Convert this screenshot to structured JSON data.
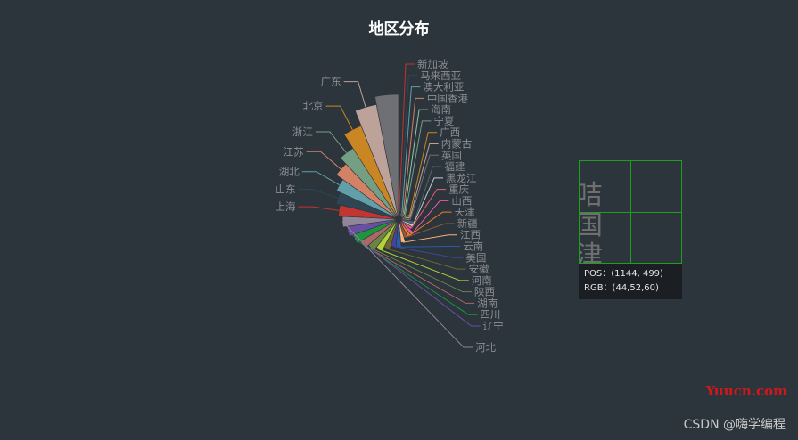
{
  "chart_data": {
    "type": "pie",
    "subtype": "rose",
    "title": "地区分布",
    "legend": "none",
    "slices": [
      {
        "label": "新加坡",
        "value": 1,
        "color": "#c23531"
      },
      {
        "label": "马来西亚",
        "value": 1,
        "color": "#2f4554"
      },
      {
        "label": "澳大利亚",
        "value": 1,
        "color": "#61a0a8"
      },
      {
        "label": "中国香港",
        "value": 1,
        "color": "#d48265"
      },
      {
        "label": "海南",
        "value": 1,
        "color": "#91c7ae"
      },
      {
        "label": "宁夏",
        "value": 1,
        "color": "#749f83"
      },
      {
        "label": "广西",
        "value": 2,
        "color": "#ca8622"
      },
      {
        "label": "内蒙古",
        "value": 2,
        "color": "#bda29a"
      },
      {
        "label": "英国",
        "value": 2,
        "color": "#6e7074"
      },
      {
        "label": "福建",
        "value": 3,
        "color": "#546570"
      },
      {
        "label": "黑龙江",
        "value": 3,
        "color": "#c4ccd3"
      },
      {
        "label": "重庆",
        "value": 3,
        "color": "#f05b72"
      },
      {
        "label": "山西",
        "value": 4,
        "color": "#ef5b9c"
      },
      {
        "label": "天津",
        "value": 4,
        "color": "#f47920"
      },
      {
        "label": "新疆",
        "value": 4,
        "color": "#905a3d"
      },
      {
        "label": "江西",
        "value": 5,
        "color": "#fab27b"
      },
      {
        "label": "云南",
        "value": 6,
        "color": "#2a5caa"
      },
      {
        "label": "美国",
        "value": 6,
        "color": "#444693"
      },
      {
        "label": "安徽",
        "value": 7,
        "color": "#726930"
      },
      {
        "label": "河南",
        "value": 8,
        "color": "#b2d235"
      },
      {
        "label": "陕西",
        "value": 9,
        "color": "#6d8346"
      },
      {
        "label": "湖南",
        "value": 10,
        "color": "#ac6767"
      },
      {
        "label": "四川",
        "value": 11,
        "color": "#1d953f"
      },
      {
        "label": "辽宁",
        "value": 12,
        "color": "#6950a1"
      },
      {
        "label": "河北",
        "value": 13,
        "color": "#918597"
      },
      {
        "label": "上海",
        "value": 14,
        "color": "#c23531"
      },
      {
        "label": "山东",
        "value": 15,
        "color": "#2f4554"
      },
      {
        "label": "湖北",
        "value": 16,
        "color": "#61a0a8"
      },
      {
        "label": "江苏",
        "value": 18,
        "color": "#d48265"
      },
      {
        "label": "浙江",
        "value": 20,
        "color": "#749f83"
      },
      {
        "label": "北京",
        "value": 24,
        "color": "#ca8622"
      },
      {
        "label": "广东",
        "value": 28,
        "color": "#bda29a"
      },
      {
        "label": "",
        "value": 30,
        "color": "#6e7074"
      }
    ]
  },
  "magnifier": {
    "glyphs": "咭\n国\n津",
    "pos_line": "POS：(1144, 499)",
    "rgb_line": "RGB：(44,52,60)"
  },
  "watermarks": {
    "site": "Yuucn.com",
    "csdn": "CSDN @嗨学编程"
  }
}
